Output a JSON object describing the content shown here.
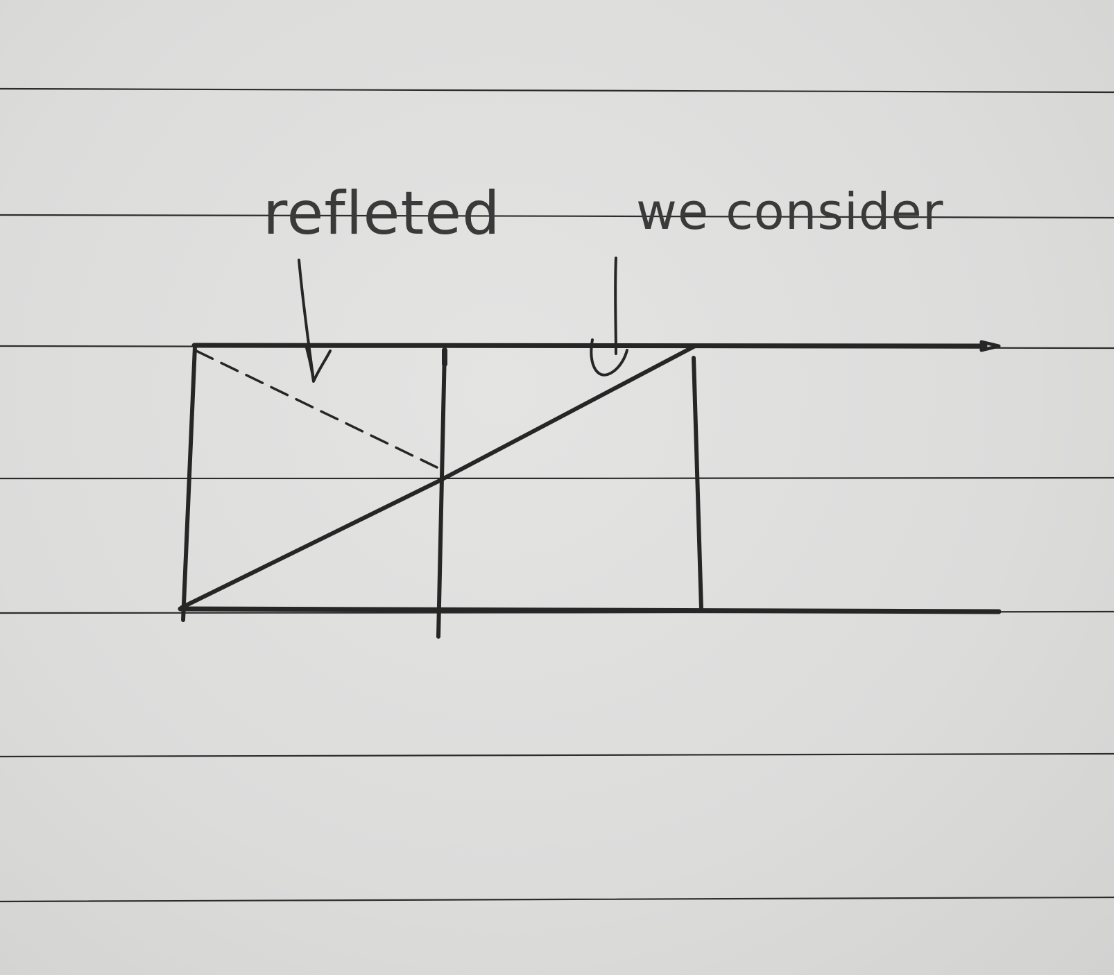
{
  "labels": {
    "reflected": "refleted",
    "considered": "we consider"
  },
  "ink_color": "#262626",
  "paper_color": "#dedede"
}
